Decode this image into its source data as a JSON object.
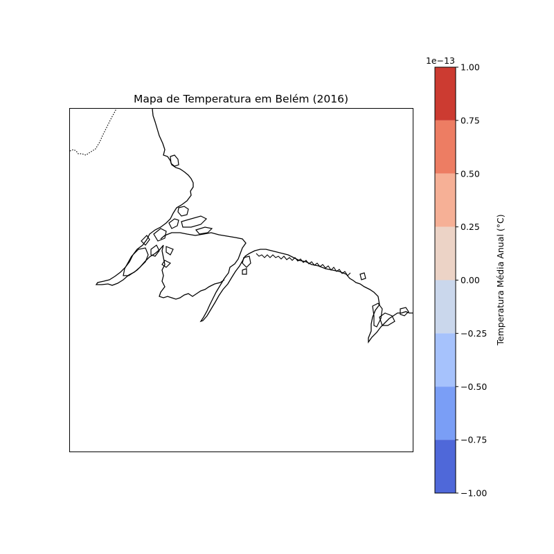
{
  "figure": {
    "title": "Mapa de Temperatura em Belém (2016)"
  },
  "colorbar": {
    "label": "Temperatura Média Anual (°C)",
    "offset_label": "1e−13",
    "ticks": [
      "1.00",
      "0.75",
      "0.50",
      "0.25",
      "0.00",
      "−0.25",
      "−0.50",
      "−0.75",
      "−1.00"
    ],
    "levels": [
      {
        "from": 0.75,
        "to": 1.0,
        "color": "#cc3b31"
      },
      {
        "from": 0.5,
        "to": 0.75,
        "color": "#ed7d63"
      },
      {
        "from": 0.25,
        "to": 0.5,
        "color": "#f6b096"
      },
      {
        "from": 0.0,
        "to": 0.25,
        "color": "#ecd3c6"
      },
      {
        "from": -0.25,
        "to": 0.0,
        "color": "#cad7ec"
      },
      {
        "from": -0.5,
        "to": -0.25,
        "color": "#a6c2fc"
      },
      {
        "from": -0.75,
        "to": -0.5,
        "color": "#7a9ef6"
      },
      {
        "from": -1.0,
        "to": -0.75,
        "color": "#4f68d9"
      }
    ]
  }
}
